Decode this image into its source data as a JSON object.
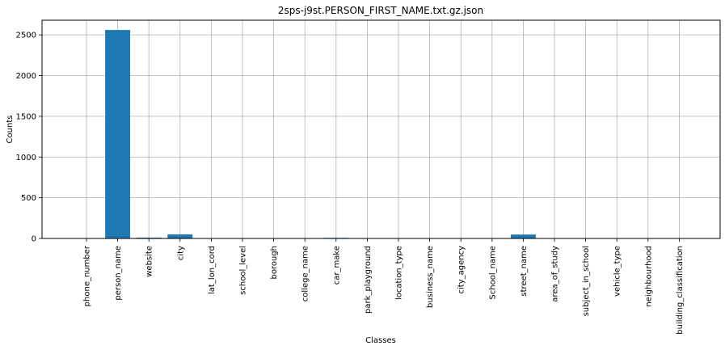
{
  "chart_data": {
    "type": "bar",
    "title": "2sps-j9st.PERSON_FIRST_NAME.txt.gz.json",
    "xlabel": "Classes",
    "ylabel": "Counts",
    "ylim": [
      0,
      2680
    ],
    "yticks": [
      0,
      500,
      1000,
      1500,
      2000,
      2500
    ],
    "ytick_labels": [
      "0",
      "500",
      "1000",
      "1500",
      "2000",
      "2500"
    ],
    "grid": true,
    "legend": "none",
    "bar_color": "#1f77b4",
    "categories": [
      "phone_number",
      "person_name",
      "website",
      "city",
      "lat_lon_cord",
      "school_level",
      "borough",
      "college_name",
      "car_make",
      "park_playground",
      "location_type",
      "business_name",
      "city_agency",
      "School_name",
      "street_name",
      "area_of_study",
      "subject_in_school",
      "vehicle_type",
      "neighbourhood",
      "building_classification"
    ],
    "values": [
      0,
      2560,
      10,
      50,
      0,
      0,
      0,
      0,
      8,
      0,
      0,
      0,
      0,
      0,
      48,
      0,
      0,
      0,
      0,
      0
    ]
  }
}
